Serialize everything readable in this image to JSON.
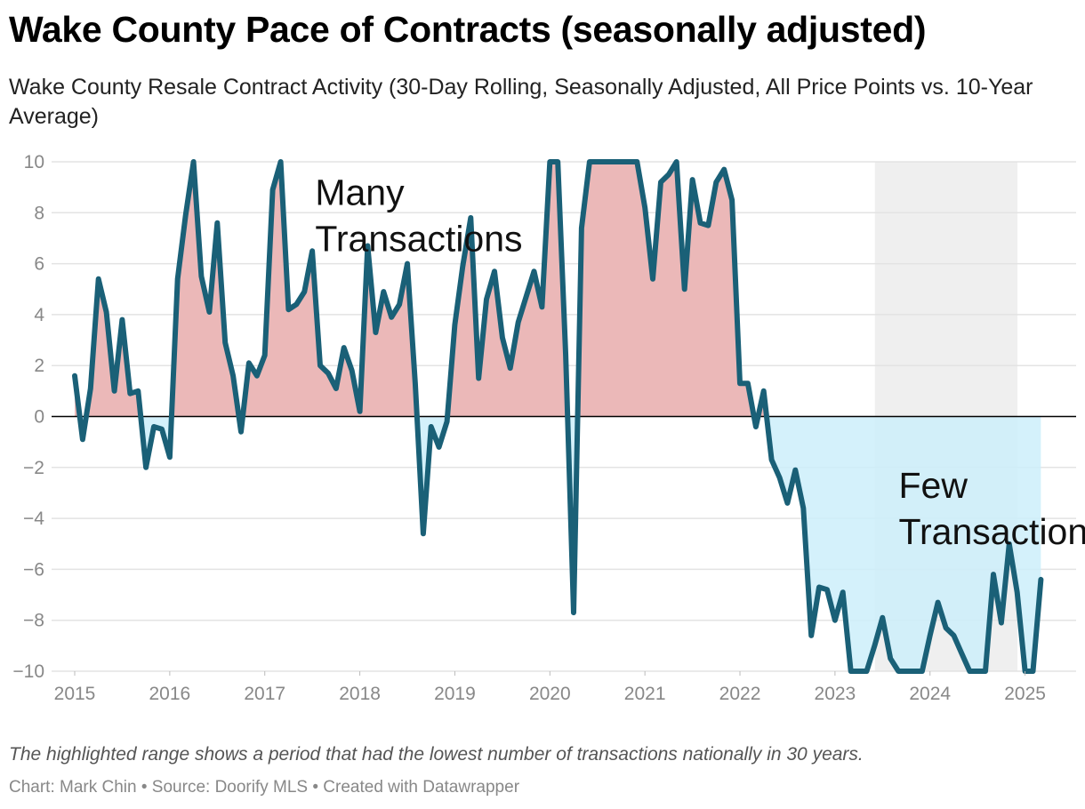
{
  "title": "Wake County Pace of Contracts (seasonally adjusted)",
  "subtitle": "Wake County Resale Contract Activity (30-Day Rolling, Seasonally Adjusted, All Price Points vs. 10-Year Average)",
  "note": "The highlighted range shows a period that had the lowest number of transactions nationally in 30 years.",
  "credit": "Chart: Mark Chin • Source: Doorify MLS • Created with Datawrapper",
  "colors": {
    "line": "#1a6077",
    "positive_fill": "#ebb8b8",
    "negative_fill": "#cdeefa",
    "highlight_band": "#efefef",
    "grid": "#e3e3e3",
    "zero_line": "#000000",
    "tick_text": "#888888"
  },
  "chart_data": {
    "type": "area",
    "title": "Wake County Pace of Contracts (seasonally adjusted)",
    "xlabel": "",
    "ylabel": "",
    "ylim": [
      -10,
      10
    ],
    "xlim": [
      2015,
      2025.35
    ],
    "yticks": [
      10,
      8,
      6,
      4,
      2,
      0,
      -2,
      -4,
      -6,
      -8,
      -10
    ],
    "ytick_labels": [
      "10",
      "8",
      "6",
      "4",
      "2",
      "0",
      "−2",
      "−4",
      "−6",
      "−8",
      "−10"
    ],
    "xticks": [
      2015,
      2016,
      2017,
      2018,
      2019,
      2020,
      2021,
      2022,
      2023,
      2024,
      2025
    ],
    "xtick_labels": [
      "2015",
      "2016",
      "2017",
      "2018",
      "2019",
      "2020",
      "2021",
      "2022",
      "2023",
      "2024",
      "2025"
    ],
    "highlight_range": [
      2023.42,
      2024.92
    ],
    "grid": true,
    "annotations": [
      {
        "lines": [
          "Many",
          "Transactions"
        ],
        "x": 2017.53,
        "y": 8.8
      },
      {
        "lines": [
          "Few",
          "Transactions"
        ],
        "x": 2023.67,
        "y": -2.7
      }
    ],
    "series": [
      {
        "name": "Resale contract activity vs. 10-year average",
        "x": [
          2015,
          2015.083,
          2015.167,
          2015.25,
          2015.333,
          2015.417,
          2015.5,
          2015.583,
          2015.667,
          2015.75,
          2015.833,
          2015.917,
          2016,
          2016.083,
          2016.167,
          2016.25,
          2016.333,
          2016.417,
          2016.5,
          2016.583,
          2016.667,
          2016.75,
          2016.833,
          2016.917,
          2017,
          2017.083,
          2017.167,
          2017.25,
          2017.333,
          2017.417,
          2017.5,
          2017.583,
          2017.667,
          2017.75,
          2017.833,
          2017.917,
          2018,
          2018.083,
          2018.167,
          2018.25,
          2018.333,
          2018.417,
          2018.5,
          2018.583,
          2018.667,
          2018.75,
          2018.833,
          2018.917,
          2019,
          2019.083,
          2019.167,
          2019.25,
          2019.333,
          2019.417,
          2019.5,
          2019.583,
          2019.667,
          2019.75,
          2019.833,
          2019.917,
          2020,
          2020.083,
          2020.167,
          2020.25,
          2020.333,
          2020.417,
          2020.5,
          2020.583,
          2020.667,
          2020.75,
          2020.833,
          2020.917,
          2021,
          2021.083,
          2021.167,
          2021.25,
          2021.333,
          2021.417,
          2021.5,
          2021.583,
          2021.667,
          2021.75,
          2021.833,
          2021.917,
          2022,
          2022.083,
          2022.167,
          2022.25,
          2022.333,
          2022.417,
          2022.5,
          2022.583,
          2022.667,
          2022.75,
          2022.833,
          2022.917,
          2023,
          2023.083,
          2023.167,
          2023.25,
          2023.333,
          2023.417,
          2023.5,
          2023.583,
          2023.667,
          2023.75,
          2023.833,
          2023.917,
          2024,
          2024.083,
          2024.167,
          2024.25,
          2024.333,
          2024.417,
          2024.5,
          2024.583,
          2024.667,
          2024.75,
          2024.833,
          2024.917,
          2025,
          2025.083,
          2025.167
        ],
        "values": [
          1.6,
          -0.9,
          1.1,
          5.4,
          4.1,
          1.0,
          3.8,
          0.9,
          1.0,
          -2.0,
          -0.4,
          -0.5,
          -1.6,
          5.4,
          7.9,
          10.0,
          5.5,
          4.1,
          7.6,
          2.9,
          1.6,
          -0.6,
          2.1,
          1.6,
          2.4,
          8.9,
          10.0,
          4.2,
          4.4,
          4.9,
          6.5,
          2.0,
          1.7,
          1.1,
          2.7,
          1.8,
          0.2,
          6.7,
          3.3,
          4.9,
          3.9,
          4.4,
          6.0,
          1.3,
          -4.6,
          -0.4,
          -1.2,
          -0.2,
          3.6,
          5.9,
          7.8,
          1.5,
          4.6,
          5.7,
          3.1,
          1.9,
          3.7,
          4.7,
          5.7,
          4.3,
          10.0,
          10.0,
          2.4,
          -7.7,
          7.4,
          10.0,
          10.0,
          10.0,
          10.0,
          10.0,
          10.0,
          10.0,
          8.2,
          5.4,
          9.2,
          9.5,
          10.0,
          5.0,
          9.3,
          7.6,
          7.5,
          9.2,
          9.7,
          8.5,
          1.3,
          1.3,
          -0.4,
          1.0,
          -1.7,
          -2.4,
          -3.4,
          -2.1,
          -3.6,
          -8.6,
          -6.7,
          -6.8,
          -8.0,
          -6.9,
          -10.0,
          -10.0,
          -10.0,
          -9.0,
          -7.9,
          -9.5,
          -10.0,
          -10.0,
          -10.0,
          -10.0,
          -8.6,
          -7.3,
          -8.3,
          -8.6,
          -9.3,
          -10.0,
          -10.0,
          -10.0,
          -6.2,
          -8.1,
          -5.0,
          -6.9,
          -10.0,
          -10.0,
          -6.4
        ]
      }
    ]
  }
}
